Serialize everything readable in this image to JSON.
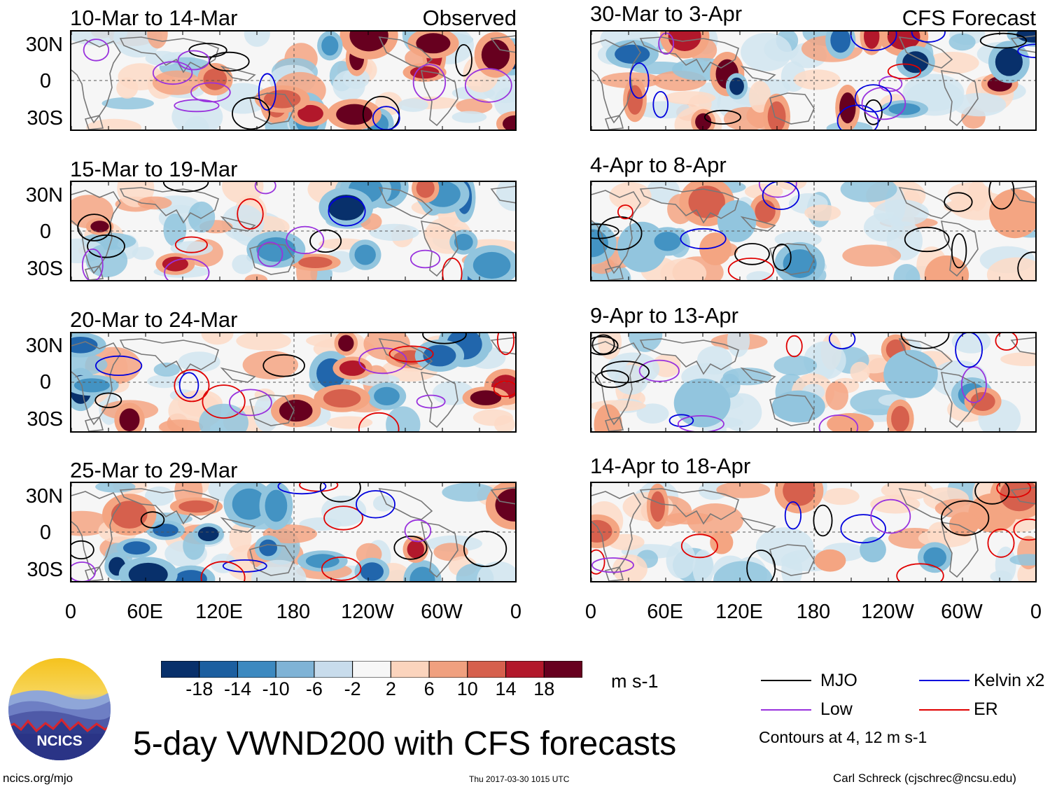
{
  "chart_data": {
    "type": "heatmap",
    "title": "5-day VWND200 with CFS forecasts",
    "variable": "VWND200",
    "units": "m s-1",
    "xlabel": "",
    "ylabel": "",
    "x_ticks": [
      "0",
      "60E",
      "120E",
      "180",
      "120W",
      "60W",
      "0"
    ],
    "x_range": [
      0,
      360
    ],
    "y_ticks": [
      "30N",
      "0",
      "30S"
    ],
    "y_range": [
      -40,
      40
    ],
    "columns": [
      {
        "label": "Observed",
        "periods": [
          "10-Mar to 14-Mar",
          "15-Mar to 19-Mar",
          "20-Mar to 24-Mar",
          "25-Mar to 29-Mar"
        ]
      },
      {
        "label": "CFS Forecast",
        "periods": [
          "30-Mar to 3-Apr",
          "4-Apr to 8-Apr",
          "9-Apr to 13-Apr",
          "14-Apr to 18-Apr"
        ]
      }
    ],
    "colorbar": {
      "levels": [
        "-18",
        "-14",
        "-10",
        "-6",
        "-2",
        "2",
        "6",
        "10",
        "14",
        "18"
      ],
      "colors": [
        "#08306b",
        "#1c5fa0",
        "#3c89c0",
        "#7fb3d6",
        "#c8dcec",
        "#f7f7f7",
        "#fbd4bd",
        "#f0a07f",
        "#d6604d",
        "#b2182b",
        "#67001f"
      ]
    },
    "contours": {
      "legend": [
        {
          "label": "MJO",
          "color": "#000000"
        },
        {
          "label": "Kelvin x2",
          "color": "#0000dd"
        },
        {
          "label": "Low",
          "color": "#9932dd"
        },
        {
          "label": "ER",
          "color": "#e00000"
        }
      ],
      "note": "Contours at 4, 12 m s-1"
    }
  },
  "logo": {
    "text": "NCICS"
  },
  "footer": {
    "left": "ncics.org/mjo",
    "center": "Thu 2017-03-30 1015 UTC",
    "right": "Carl Schreck (cjschrec@ncsu.edu)"
  }
}
